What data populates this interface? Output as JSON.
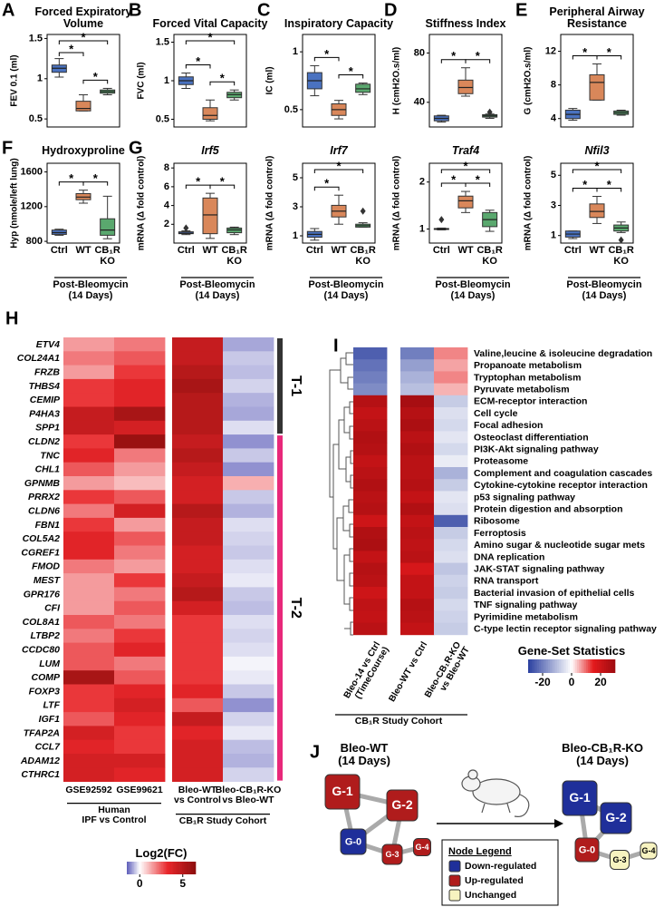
{
  "group_colors": [
    "#4a72c0",
    "#d9875a",
    "#5aa86e"
  ],
  "chart_data": [
    {
      "type": "box",
      "letter": "A",
      "title": "Forced Expiratory Volume",
      "ylabel": "FEV 0.1 (ml)",
      "ylim": [
        0.4,
        1.55
      ],
      "yticks": [
        0.5,
        1,
        1.5
      ],
      "boxes": [
        [
          1.02,
          1.08,
          1.13,
          1.17,
          1.25
        ],
        [
          0.6,
          0.6,
          0.63,
          0.72,
          0.8
        ],
        [
          0.8,
          0.82,
          0.84,
          0.86,
          0.88
        ]
      ],
      "outliers": [
        [],
        [],
        []
      ],
      "pairs": [
        [
          0,
          1
        ],
        [
          1,
          2
        ],
        [
          0,
          2
        ]
      ],
      "sig_label": "*"
    },
    {
      "type": "box",
      "letter": "B",
      "title": "Forced Vital Capacity",
      "ylabel": "FVC (ml)",
      "ylim": [
        0.4,
        1.6
      ],
      "yticks": [
        0.5,
        1,
        1.5
      ],
      "boxes": [
        [
          0.9,
          0.95,
          1.0,
          1.05,
          1.1
        ],
        [
          0.48,
          0.5,
          0.55,
          0.65,
          0.75
        ],
        [
          0.75,
          0.78,
          0.82,
          0.85,
          0.88
        ]
      ],
      "outliers": [
        [],
        [],
        []
      ],
      "pairs": [
        [
          0,
          1
        ],
        [
          1,
          2
        ],
        [
          0,
          2
        ]
      ],
      "sig_label": "*"
    },
    {
      "type": "box",
      "letter": "C",
      "title": "Inspiratory Capacity",
      "ylabel": "IC (ml)",
      "ylim": [
        0.35,
        1.15
      ],
      "yticks": [
        0.5,
        1
      ],
      "boxes": [
        [
          0.62,
          0.68,
          0.75,
          0.82,
          0.88
        ],
        [
          0.42,
          0.45,
          0.5,
          0.55,
          0.58
        ],
        [
          0.63,
          0.65,
          0.68,
          0.72,
          0.73
        ]
      ],
      "outliers": [
        [],
        [],
        []
      ],
      "pairs": [
        [
          0,
          1
        ],
        [
          1,
          2
        ]
      ],
      "sig_label": "*"
    },
    {
      "type": "box",
      "letter": "D",
      "title": "Stiffness Index",
      "ylabel": "H (cmH2O.s/ml)",
      "ylim": [
        20,
        95
      ],
      "yticks": [
        40,
        80
      ],
      "boxes": [
        [
          24,
          25,
          27,
          29,
          29.5
        ],
        [
          45,
          47,
          52,
          58,
          68
        ],
        [
          27,
          28,
          29,
          30,
          30.5
        ]
      ],
      "outliers": [
        [],
        [],
        [
          32
        ]
      ],
      "pairs": [
        [
          0,
          1
        ],
        [
          1,
          2
        ]
      ],
      "sig_label": "*"
    },
    {
      "type": "box",
      "letter": "E",
      "title": "Peripheral Airway Resistance",
      "ylabel": "G (cmH2O.s/ml)",
      "ylim": [
        3,
        14
      ],
      "yticks": [
        4,
        8,
        12
      ],
      "boxes": [
        [
          3.8,
          4,
          4.5,
          5,
          5.2
        ],
        [
          6.2,
          6.2,
          8.3,
          9.2,
          10.5
        ],
        [
          4.4,
          4.5,
          4.7,
          4.9,
          5
        ]
      ],
      "outliers": [
        [],
        [],
        []
      ],
      "pairs": [
        [
          0,
          1
        ],
        [
          1,
          2
        ]
      ],
      "sig_label": "*"
    },
    {
      "type": "box",
      "letter": "F",
      "title": "Hydroxyproline",
      "ylabel": "Hyp (nmole/left lung)",
      "ylim": [
        780,
        1700
      ],
      "yticks": [
        800,
        1200,
        1600
      ],
      "boxes": [
        [
          870,
          880,
          900,
          930,
          940
        ],
        [
          1240,
          1280,
          1310,
          1350,
          1390
        ],
        [
          830,
          870,
          930,
          1060,
          1320
        ]
      ],
      "outliers": [
        [],
        [],
        []
      ],
      "pairs": [
        [
          0,
          1
        ],
        [
          1,
          2
        ]
      ],
      "sig_label": "*",
      "categories": [
        "Ctrl",
        "WT",
        "CB₁R\nKO"
      ],
      "note": "Post-Bleomycin\n(14 Days)"
    },
    {
      "type": "box",
      "letter": "G",
      "title": "Irf5",
      "italic_title": true,
      "ylabel": "mRNA (Δ fold control)",
      "ylim": [
        0,
        8.5
      ],
      "yticks": [
        2,
        4,
        6,
        8
      ],
      "boxes": [
        [
          0.9,
          1.0,
          1.05,
          1.2,
          1.3
        ],
        [
          0.5,
          1.0,
          3.0,
          4.8,
          5.3
        ],
        [
          0.9,
          1.1,
          1.4,
          1.6,
          1.7
        ]
      ],
      "outliers": [
        [
          1.6
        ],
        [],
        []
      ],
      "pairs": [
        [
          0,
          1
        ],
        [
          1,
          2
        ]
      ],
      "sig_label": "*",
      "categories": [
        "Ctrl",
        "WT",
        "CB₁R\nKO"
      ],
      "note": "Post-Bleomycin\n(14 Days)"
    },
    {
      "type": "box",
      "title": "Irf7",
      "italic_title": true,
      "ylabel": "mRNA (Δ fold control)",
      "ylim": [
        0.5,
        6
      ],
      "yticks": [
        1,
        3,
        5
      ],
      "boxes": [
        [
          0.7,
          0.9,
          1.1,
          1.3,
          1.5
        ],
        [
          1.8,
          2.3,
          2.7,
          3.1,
          3.8
        ],
        [
          1.6,
          1.6,
          1.7,
          1.8,
          1.9
        ]
      ],
      "outliers": [
        [],
        [],
        [
          2.7
        ]
      ],
      "pairs": [
        [
          0,
          1
        ],
        [
          0,
          2
        ]
      ],
      "sig_label": "*",
      "categories": [
        "Ctrl",
        "WT",
        "CB₁R\nKO"
      ],
      "note": "Post-Bleomycin\n(14 Days)"
    },
    {
      "type": "box",
      "title": "Traf4",
      "italic_title": true,
      "ylabel": "mRNA (Δ fold control)",
      "ylim": [
        0.7,
        2.4
      ],
      "yticks": [
        1,
        2
      ],
      "boxes": [
        [
          0.98,
          0.99,
          1.0,
          1.01,
          1.02
        ],
        [
          1.35,
          1.45,
          1.6,
          1.7,
          1.8
        ],
        [
          0.95,
          1.05,
          1.2,
          1.35,
          1.4
        ]
      ],
      "outliers": [
        [
          1.2
        ],
        [],
        []
      ],
      "pairs": [
        [
          0,
          1
        ],
        [
          1,
          2
        ],
        [
          0,
          2
        ]
      ],
      "sig_label": "*",
      "categories": [
        "Ctrl",
        "WT",
        "CB₁R\nKO"
      ],
      "note": "Post-Bleomycin\n(14 Days)"
    },
    {
      "type": "box",
      "title": "Nfil3",
      "italic_title": true,
      "ylabel": "mRNA (Δ fold control)",
      "ylim": [
        0.5,
        5.8
      ],
      "yticks": [
        1,
        3,
        5
      ],
      "boxes": [
        [
          0.8,
          0.9,
          1.1,
          1.3,
          1.3
        ],
        [
          1.8,
          2.2,
          2.6,
          3.1,
          3.6
        ],
        [
          1.2,
          1.3,
          1.5,
          1.7,
          1.9
        ]
      ],
      "outliers": [
        [],
        [],
        [
          0.7
        ]
      ],
      "pairs": [
        [
          0,
          1
        ],
        [
          1,
          2
        ],
        [
          0,
          2
        ]
      ],
      "sig_label": "*",
      "categories": [
        "Ctrl",
        "WT",
        "CB₁R\nKO"
      ],
      "note": "Post-Bleomycin\n(14 Days)"
    },
    {
      "type": "heatmap",
      "letter": "H",
      "rows": [
        "ETV4",
        "COL24A1",
        "FRZB",
        "THBS4",
        "CEMIP",
        "P4HA3",
        "SPP1",
        "CLDN2",
        "TNC",
        "CHL1",
        "GPNMB",
        "PRRX2",
        "CLDN6",
        "FBN1",
        "COL5A2",
        "CGREF1",
        "FMOD",
        "MEST",
        "GPR176",
        "CFI",
        "COL8A1",
        "LTBP2",
        "CCDC80",
        "LUM",
        "COMP",
        "FOXP3",
        "LTF",
        "IGF1",
        "TFAP2A",
        "CCL7",
        "ADAM12",
        "CTHRC1"
      ],
      "columns": [
        "GSE92592",
        "GSE99621",
        "Bleo-WT\nvs Control",
        "Bleo-CB₁R-KO\nvs Bleo-WT"
      ],
      "values": [
        [
          1.5,
          2,
          4.5,
          -0.8
        ],
        [
          2,
          2.5,
          4.5,
          -0.5
        ],
        [
          1.5,
          3,
          5,
          -0.6
        ],
        [
          3,
          3.5,
          5.5,
          -0.4
        ],
        [
          3,
          3.5,
          5,
          -0.7
        ],
        [
          4.5,
          5.5,
          5,
          -0.8
        ],
        [
          4.5,
          4,
          5,
          -0.3
        ],
        [
          3,
          6,
          4.5,
          -1
        ],
        [
          3.5,
          2,
          5,
          -0.5
        ],
        [
          2.5,
          1.5,
          4.5,
          -1
        ],
        [
          1.5,
          1,
          4,
          1.2
        ],
        [
          3,
          2.5,
          4,
          -0.5
        ],
        [
          2,
          4,
          5,
          -0.7
        ],
        [
          3,
          1.5,
          4.5,
          -0.3
        ],
        [
          3.5,
          2.5,
          4.5,
          -0.4
        ],
        [
          3.5,
          2,
          4,
          -0.5
        ],
        [
          2,
          1.5,
          4,
          -0.3
        ],
        [
          1.5,
          3,
          4.5,
          -0.2
        ],
        [
          1.5,
          2,
          5,
          -0.5
        ],
        [
          1.5,
          2.5,
          4,
          -0.6
        ],
        [
          2.5,
          2,
          3,
          -0.3
        ],
        [
          2,
          3,
          3,
          -0.4
        ],
        [
          2.5,
          3.5,
          3,
          -0.3
        ],
        [
          2.5,
          2,
          3,
          -0.1
        ],
        [
          5.5,
          2.5,
          3,
          -0.2
        ],
        [
          3,
          3.5,
          3.5,
          -0.5
        ],
        [
          3,
          4,
          2.5,
          -1
        ],
        [
          2.5,
          3.5,
          4.5,
          -0.4
        ],
        [
          4,
          3,
          3.5,
          -0.2
        ],
        [
          3.5,
          3,
          4,
          -0.6
        ],
        [
          4,
          4,
          4,
          -0.7
        ],
        [
          4,
          3.5,
          4,
          -0.4
        ]
      ],
      "clusters": [
        {
          "label": "T-1",
          "size": 7,
          "color": "#333333"
        },
        {
          "label": "T-2",
          "size": 25,
          "color": "#e8287a"
        }
      ],
      "column_groups": [
        {
          "label": "Human\nIPF vs Control",
          "size": 2
        },
        {
          "label": "CB₁R Study Cohort",
          "size": 2
        }
      ],
      "colorbar_title": "Log2(FC)",
      "clim": [
        -1.5,
        6.5
      ],
      "cticks": [
        0,
        5
      ],
      "colormap": [
        "#5a5ab8",
        "#ffffff",
        "#e8262a",
        "#8c0d0d"
      ]
    },
    {
      "type": "heatmap",
      "letter": "I",
      "rows": [
        "Valine,leucine & isoleucine degradation",
        "Propanoate metabolism",
        "Tryptophan metabolism",
        "Pyruvate metabolism",
        "ECM-receptor interaction",
        "Cell cycle",
        "Focal adhesion",
        "Osteoclast differentiation",
        "PI3K-Akt signaling pathway",
        "Proteasome",
        "Complement and coagulation cascades",
        "Cytokine-cytokine receptor interaction",
        "p53 signaling pathway",
        "Protein digestion and absorption",
        "Ribosome",
        "Ferroptosis",
        "Amino sugar & nucleotide sugar mets",
        "DNA replication",
        "JAK-STAT signaling pathway",
        "RNA transport",
        "Bacterial invasion of epithelial cells",
        "TNF signaling pathway",
        "Pyrimidine metabolism",
        "C-type lectin receptor signaling pathway"
      ],
      "columns": [
        "Bleo-14 vs Ctrl\n(TimeCourse)",
        "Bleo-WT vs Ctrl",
        "Bleo-CB₁R-KO\nvs Bleo-WT"
      ],
      "values": [
        [
          -25,
          -20,
          8
        ],
        [
          -22,
          -15,
          6
        ],
        [
          -20,
          -12,
          8
        ],
        [
          -18,
          -10,
          5
        ],
        [
          25,
          28,
          -8
        ],
        [
          22,
          25,
          -5
        ],
        [
          24,
          27,
          -6
        ],
        [
          26,
          24,
          -4
        ],
        [
          25,
          26,
          -6
        ],
        [
          22,
          24,
          -3
        ],
        [
          24,
          24,
          -12
        ],
        [
          26,
          25,
          -8
        ],
        [
          24,
          22,
          -4
        ],
        [
          25,
          26,
          -5
        ],
        [
          20,
          22,
          -25
        ],
        [
          26,
          24,
          -8
        ],
        [
          27,
          23,
          -6
        ],
        [
          22,
          24,
          -5
        ],
        [
          25,
          18,
          -9
        ],
        [
          24,
          22,
          -7
        ],
        [
          20,
          22,
          -8
        ],
        [
          23,
          25,
          -6
        ],
        [
          22,
          24,
          -7
        ],
        [
          24,
          22,
          -8
        ]
      ],
      "column_groups": [
        {
          "label": "CB₁R Study Cohort",
          "size": 3
        }
      ],
      "colorbar_title": "Gene-Set Statistics",
      "clim": [
        -30,
        30
      ],
      "cticks": [
        -20,
        0,
        20
      ],
      "colormap": [
        "#2a3f9f",
        "#ffffff",
        "#e41a1c",
        "#9e0c10"
      ]
    }
  ],
  "diagram": {
    "letter": "J",
    "networks": [
      {
        "title": "Bleo-WT\n(14 Days)",
        "nodes": [
          {
            "label": "G-1",
            "state": 1
          },
          {
            "label": "G-2",
            "state": 1
          },
          {
            "label": "G-0",
            "state": 0
          },
          {
            "label": "G-3",
            "state": 1
          },
          {
            "label": "G-4",
            "state": 1
          }
        ]
      },
      {
        "title": "Bleo-CB₁R-KO\n(14 Days)",
        "nodes": [
          {
            "label": "G-1",
            "state": 0
          },
          {
            "label": "G-2",
            "state": 0
          },
          {
            "label": "G-0",
            "state": 1
          },
          {
            "label": "G-3",
            "state": 2
          },
          {
            "label": "G-4",
            "state": 2
          }
        ]
      }
    ],
    "legend": {
      "title": "Node Legend",
      "items": [
        {
          "label": "Down-regulated",
          "color": "#1f2f9a"
        },
        {
          "label": "Up-regulated",
          "color": "#b01c1c"
        },
        {
          "label": "Unchanged",
          "color": "#f7f3c0"
        }
      ]
    }
  }
}
